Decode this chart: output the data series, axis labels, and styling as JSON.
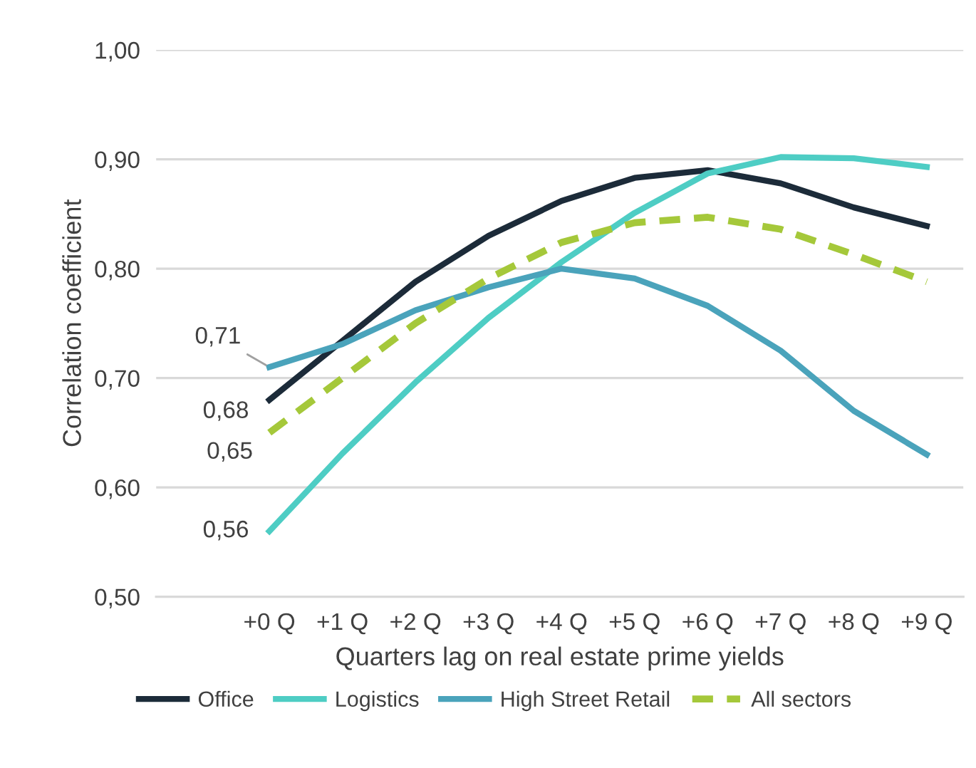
{
  "chart_data": {
    "type": "line",
    "xlabel": "Quarters lag on real estate prime yields",
    "ylabel": "Correlation coefficient",
    "categories": [
      "+0 Q",
      "+1 Q",
      "+2 Q",
      "+3 Q",
      "+4 Q",
      "+5 Q",
      "+6 Q",
      "+7 Q",
      "+8 Q",
      "+9 Q"
    ],
    "series": [
      {
        "name": "Office",
        "color": "#1c2b39",
        "values": [
          0.68,
          0.734,
          0.788,
          0.83,
          0.862,
          0.883,
          0.89,
          0.878,
          0.856,
          0.839
        ],
        "value_labels": [
          "0,68",
          null,
          null,
          null,
          null,
          null,
          null,
          null,
          null,
          null
        ]
      },
      {
        "name": "Logistics",
        "color": "#4ecdc4",
        "values": [
          0.56,
          0.631,
          0.696,
          0.755,
          0.806,
          0.851,
          0.887,
          0.902,
          0.901,
          0.893
        ],
        "value_labels": [
          "0,56",
          null,
          null,
          null,
          null,
          null,
          null,
          null,
          null,
          null
        ]
      },
      {
        "name": "High Street Retail",
        "color": "#4aa3bb",
        "values": [
          0.71,
          0.731,
          0.762,
          0.783,
          0.8,
          0.791,
          0.766,
          0.725,
          0.67,
          0.63
        ],
        "value_labels": [
          "0,71",
          null,
          null,
          null,
          null,
          null,
          null,
          null,
          null,
          null
        ]
      },
      {
        "name": "All sectors",
        "color": "#a5c83a",
        "line_style": "dashed",
        "values": [
          0.65,
          0.7,
          0.75,
          0.791,
          0.824,
          0.842,
          0.847,
          0.836,
          0.813,
          0.788
        ],
        "value_labels": [
          "0,65",
          null,
          null,
          null,
          null,
          null,
          null,
          null,
          null,
          null
        ]
      }
    ],
    "ylim": [
      0.5,
      1.0
    ],
    "yticks": [
      {
        "value": 0.5,
        "label": "0,50"
      },
      {
        "value": 0.6,
        "label": "0,60"
      },
      {
        "value": 0.7,
        "label": "0,70"
      },
      {
        "value": 0.8,
        "label": "0,80"
      },
      {
        "value": 0.9,
        "label": "0,90"
      },
      {
        "value": 1.0,
        "label": "1,00"
      }
    ],
    "grid": "y",
    "legend": "bottom",
    "marker": "none",
    "line_style": "solid"
  }
}
